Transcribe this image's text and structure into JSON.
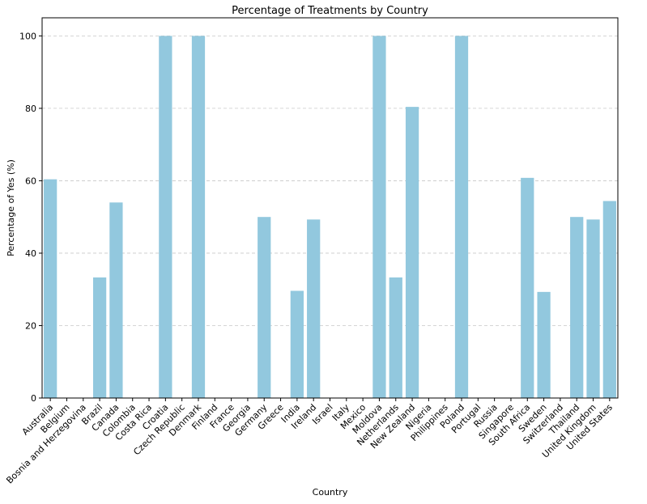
{
  "chart_data": {
    "type": "bar",
    "title": "Percentage of Treatments by Country",
    "xlabel": "Country",
    "ylabel": "Percentage of Yes (%)",
    "ylim": [
      0,
      105
    ],
    "yticks": [
      0,
      20,
      40,
      60,
      80,
      100
    ],
    "grid": "horizontal-dashed",
    "bar_color": "#92c8de",
    "categories": [
      "Australia",
      "Belgium",
      "Bosnia and Herzegovina",
      "Brazil",
      "Canada",
      "Colombia",
      "Costa Rica",
      "Croatia",
      "Czech Republic",
      "Denmark",
      "Finland",
      "France",
      "Georgia",
      "Germany",
      "Greece",
      "India",
      "Ireland",
      "Israel",
      "Italy",
      "Mexico",
      "Moldova",
      "Netherlands",
      "New Zealand",
      "Nigeria",
      "Philippines",
      "Poland",
      "Portugal",
      "Russia",
      "Singapore",
      "South Africa",
      "Sweden",
      "Switzerland",
      "Thailand",
      "United Kingdom",
      "United States"
    ],
    "values": [
      60.4,
      0,
      0,
      33.3,
      54.0,
      0,
      0,
      100,
      0,
      100,
      0,
      0,
      0,
      50.0,
      0,
      29.6,
      49.3,
      0,
      0,
      0,
      100,
      33.3,
      80.4,
      0,
      0,
      100,
      0,
      0,
      0,
      60.8,
      29.3,
      0,
      50.0,
      49.3,
      54.4
    ]
  }
}
